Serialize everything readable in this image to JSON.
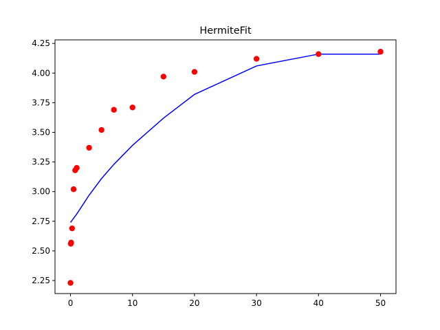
{
  "chart_data": {
    "type": "scatter",
    "title": "HermiteFit",
    "xlabel": "",
    "ylabel": "",
    "xlim": [
      -2.5,
      52.5
    ],
    "ylim": [
      2.14,
      4.28
    ],
    "x_ticks": [
      0,
      10,
      20,
      30,
      40,
      50
    ],
    "y_ticks": [
      2.25,
      2.5,
      2.75,
      3.0,
      3.25,
      3.5,
      3.75,
      4.0,
      4.25
    ],
    "y_tick_labels": [
      "2.25",
      "2.50",
      "2.75",
      "3.00",
      "3.25",
      "3.50",
      "3.75",
      "4.00",
      "4.25"
    ],
    "grid": false,
    "legend": "none",
    "series": [
      {
        "kind": "scatter",
        "color": "#ff0000",
        "x": [
          0.0,
          0.05,
          0.1,
          0.25,
          0.5,
          0.75,
          1.0,
          3.0,
          5.0,
          7.0,
          10.0,
          15.0,
          20.0,
          30.0,
          40.0,
          50.0
        ],
        "y": [
          2.23,
          2.56,
          2.57,
          2.69,
          3.02,
          3.18,
          3.2,
          3.37,
          3.52,
          3.69,
          3.71,
          3.97,
          4.01,
          4.12,
          4.16,
          4.18
        ]
      },
      {
        "kind": "line",
        "color": "#0000ff",
        "x": [
          0.0,
          1.0,
          3.0,
          5.0,
          7.0,
          10.0,
          15.0,
          20.0,
          30.0,
          40.0,
          50.0
        ],
        "y": [
          2.74,
          2.81,
          2.97,
          3.11,
          3.23,
          3.39,
          3.62,
          3.82,
          4.06,
          4.16,
          4.16
        ]
      }
    ]
  }
}
